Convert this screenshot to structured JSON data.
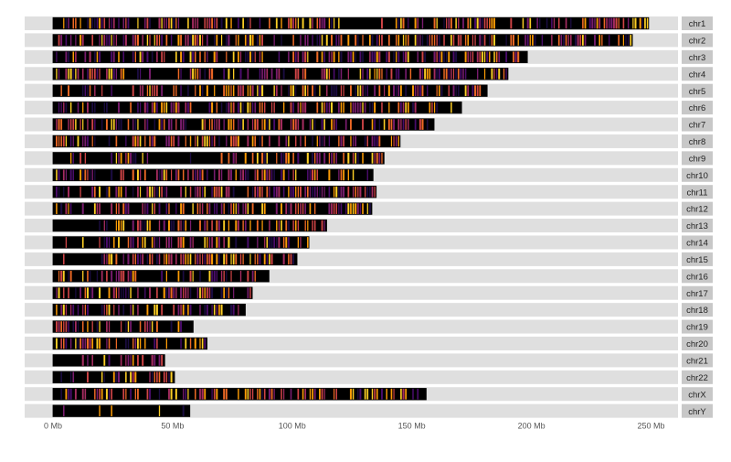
{
  "chart_data": {
    "type": "heatmap",
    "title": "",
    "xlabel": "",
    "ylabel": "",
    "x_unit": "Mb",
    "xlim": [
      -12,
      262
    ],
    "x_ticks": [
      {
        "value": 0,
        "label": "0 Mb"
      },
      {
        "value": 50,
        "label": "50 Mb"
      },
      {
        "value": 100,
        "label": "100 Mb"
      },
      {
        "value": 150,
        "label": "150 Mb"
      },
      {
        "value": 200,
        "label": "200 Mb"
      },
      {
        "value": 250,
        "label": "250 Mb"
      }
    ],
    "grid": false,
    "legend": "none",
    "colors": {
      "panel_background": "#dfdfdf",
      "strip_background": "#c8c8c8",
      "strip_text": "#222222",
      "tick_text": "#555555",
      "band_outline": "#000000",
      "palette": [
        "#000000",
        "#1b0c41",
        "#4a0c6b",
        "#781c6d",
        "#a52c60",
        "#cf4446",
        "#ed6925",
        "#fb9b06",
        "#fcce25"
      ]
    },
    "chromosomes": [
      {
        "name": "chr1",
        "length": 249.0,
        "seed": 11,
        "sparse_regions": [
          [
            121,
            143
          ],
          [
            188,
            196
          ]
        ]
      },
      {
        "name": "chr2",
        "length": 242.2,
        "seed": 23,
        "sparse_regions": [
          [
            90,
            96
          ]
        ]
      },
      {
        "name": "chr3",
        "length": 198.3,
        "seed": 37,
        "sparse_regions": [
          [
            88,
            94
          ]
        ]
      },
      {
        "name": "chr4",
        "length": 190.2,
        "seed": 41,
        "sparse_regions": [
          [
            38,
            48
          ],
          [
            49,
            52
          ]
        ]
      },
      {
        "name": "chr5",
        "length": 181.5,
        "seed": 53,
        "sparse_regions": [
          [
            18,
            32
          ],
          [
            46,
            50
          ]
        ]
      },
      {
        "name": "chr6",
        "length": 170.8,
        "seed": 67,
        "sparse_regions": [
          [
            58,
            62
          ]
        ]
      },
      {
        "name": "chr7",
        "length": 159.3,
        "seed": 71,
        "sparse_regions": [
          [
            56,
            62
          ]
        ]
      },
      {
        "name": "chr8",
        "length": 145.1,
        "seed": 83,
        "sparse_regions": [
          [
            43,
            47
          ]
        ]
      },
      {
        "name": "chr9",
        "length": 138.4,
        "seed": 97,
        "sparse_regions": [
          [
            38,
            70
          ]
        ]
      },
      {
        "name": "chr10",
        "length": 133.8,
        "seed": 101,
        "sparse_regions": [
          [
            39,
            42
          ]
        ]
      },
      {
        "name": "chr11",
        "length": 135.1,
        "seed": 113,
        "sparse_regions": [
          [
            51,
            55
          ]
        ]
      },
      {
        "name": "chr12",
        "length": 133.3,
        "seed": 127,
        "sparse_regions": [
          [
            34,
            37
          ]
        ]
      },
      {
        "name": "chr13",
        "length": 114.4,
        "seed": 131,
        "sparse_regions": [
          [
            0,
            19
          ]
        ]
      },
      {
        "name": "chr14",
        "length": 107.0,
        "seed": 149,
        "sparse_regions": [
          [
            0,
            18
          ]
        ]
      },
      {
        "name": "chr15",
        "length": 102.0,
        "seed": 151,
        "sparse_regions": [
          [
            0,
            20
          ]
        ]
      },
      {
        "name": "chr16",
        "length": 90.3,
        "seed": 163,
        "sparse_regions": [
          [
            36,
            46
          ]
        ]
      },
      {
        "name": "chr17",
        "length": 83.3,
        "seed": 173,
        "sparse_regions": [
          [
            22,
            25
          ]
        ]
      },
      {
        "name": "chr18",
        "length": 80.4,
        "seed": 181,
        "sparse_regions": [
          [
            15,
            19
          ]
        ]
      },
      {
        "name": "chr19",
        "length": 58.6,
        "seed": 191,
        "sparse_regions": [
          [
            24,
            28
          ]
        ]
      },
      {
        "name": "chr20",
        "length": 64.4,
        "seed": 193,
        "sparse_regions": [
          [
            26,
            30
          ]
        ]
      },
      {
        "name": "chr21",
        "length": 46.7,
        "seed": 197,
        "sparse_regions": [
          [
            0,
            13
          ]
        ]
      },
      {
        "name": "chr22",
        "length": 50.8,
        "seed": 199,
        "sparse_regions": [
          [
            0,
            17
          ]
        ]
      },
      {
        "name": "chrX",
        "length": 156.0,
        "seed": 211,
        "sparse_regions": [
          [
            58,
            61
          ]
        ]
      },
      {
        "name": "chrY",
        "length": 57.2,
        "seed": 223,
        "sparse_regions": [
          [
            0,
            57.2
          ]
        ]
      }
    ]
  }
}
